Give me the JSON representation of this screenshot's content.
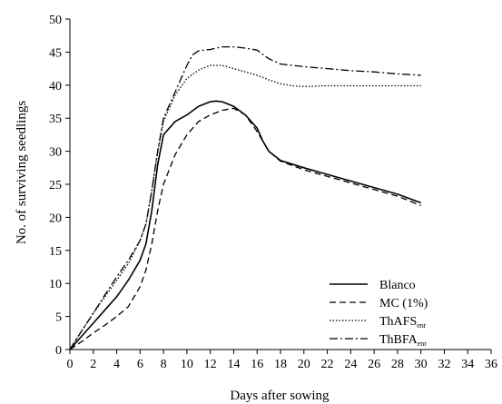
{
  "chart_data": {
    "type": "line",
    "xlabel": "Days after sowing",
    "ylabel": "No. of surviving seedlings",
    "xlim": [
      0,
      36
    ],
    "ylim": [
      0,
      50
    ],
    "xticks": [
      0,
      2,
      4,
      6,
      8,
      10,
      12,
      14,
      16,
      18,
      20,
      22,
      24,
      26,
      28,
      30,
      32,
      34,
      36
    ],
    "yticks": [
      0,
      5,
      10,
      15,
      20,
      25,
      30,
      35,
      40,
      45,
      50
    ],
    "grid": false,
    "legend": "bottom-right",
    "series": [
      {
        "name": "Blanco",
        "dash": "solid",
        "x": [
          0,
          1,
          2,
          3,
          4,
          5,
          6,
          6.5,
          7,
          7.5,
          8,
          9,
          10,
          11,
          12,
          12.5,
          13,
          14,
          15,
          16,
          16.5,
          17,
          18,
          20,
          22,
          24,
          26,
          28,
          30
        ],
        "y": [
          0,
          2,
          4,
          6,
          8,
          10.5,
          13.5,
          16,
          21,
          28,
          32.5,
          34.5,
          35.5,
          36.8,
          37.5,
          37.6,
          37.5,
          36.8,
          35.5,
          33.5,
          31.5,
          30,
          28.6,
          27.5,
          26.5,
          25.5,
          24.5,
          23.5,
          22.2
        ]
      },
      {
        "name": "MC (1%)",
        "dash": "dashed",
        "x": [
          0,
          1,
          2,
          3,
          4,
          5,
          6,
          6.5,
          7,
          7.5,
          8,
          9,
          10,
          11,
          12,
          13,
          14,
          15,
          16,
          17,
          18,
          20,
          22,
          24,
          26,
          28,
          30
        ],
        "y": [
          0,
          1.2,
          2.5,
          3.7,
          5,
          6.5,
          9.5,
          12,
          16,
          21,
          25,
          29.5,
          32.5,
          34.5,
          35.5,
          36.2,
          36.5,
          35.5,
          33,
          30,
          28.5,
          27.2,
          26.2,
          25.2,
          24.2,
          23.2,
          21.8
        ]
      },
      {
        "name": "ThAFS",
        "sub": "enr",
        "dash": "dotted",
        "x": [
          0,
          1,
          2,
          3,
          4,
          5,
          6,
          6.5,
          7,
          7.5,
          8,
          9,
          10,
          11,
          12,
          13,
          14,
          15,
          16,
          17,
          18,
          19,
          20,
          22,
          24,
          26,
          28,
          30
        ],
        "y": [
          0,
          2.8,
          5.5,
          8,
          10.5,
          13,
          16.5,
          19,
          24,
          30,
          34.5,
          38.5,
          41,
          42.3,
          43,
          43,
          42.5,
          42,
          41.5,
          40.8,
          40.2,
          39.9,
          39.8,
          39.9,
          39.9,
          39.9,
          39.9,
          39.9
        ]
      },
      {
        "name": "ThBFA",
        "sub": "enr",
        "dash": "dashdot",
        "x": [
          0,
          1,
          2,
          3,
          4,
          5,
          6,
          6.5,
          7,
          7.5,
          8,
          9,
          10,
          10.5,
          11,
          12,
          13,
          14,
          15,
          16,
          17,
          18,
          20,
          22,
          24,
          26,
          28,
          30
        ],
        "y": [
          0,
          2.8,
          5.5,
          8.3,
          11,
          13.5,
          16.5,
          19,
          24,
          30,
          35,
          39,
          43,
          44.6,
          45.2,
          45.4,
          45.8,
          45.8,
          45.6,
          45.3,
          44,
          43.2,
          42.8,
          42.5,
          42.2,
          42,
          41.7,
          41.5
        ]
      }
    ]
  }
}
